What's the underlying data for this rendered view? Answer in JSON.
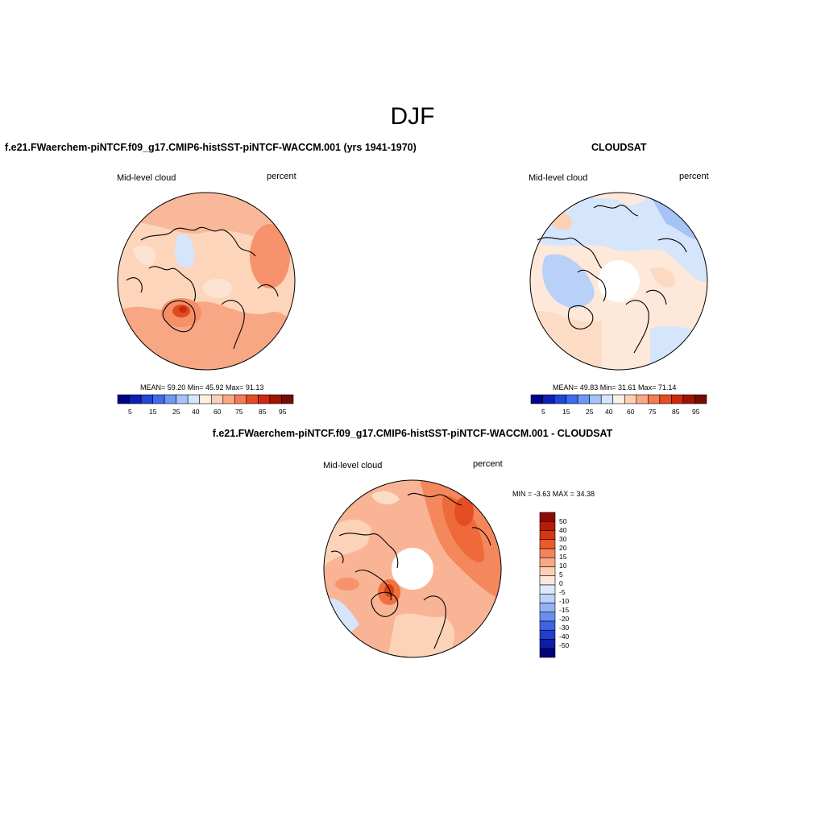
{
  "figure": {
    "title": "DJF"
  },
  "panels": {
    "model": {
      "case_title": "f.e21.FWaerchem-piNTCF.f09_g17.CMIP6-histSST-piNTCF-WACCM.001 (yrs 1941-1970)",
      "variable": "Mid-level cloud",
      "units": "percent",
      "stats": "MEAN=  59.20  Min=  45.92  Max=  91.13"
    },
    "obs": {
      "case_title": "CLOUDSAT",
      "variable": "Mid-level cloud",
      "units": "percent",
      "stats": "MEAN=  49.83  Min=  31.61  Max=  71.14"
    },
    "diff": {
      "case_title": "f.e21.FWaerchem-piNTCF.f09_g17.CMIP6-histSST-piNTCF-WACCM.001 - CLOUDSAT",
      "variable": "Mid-level cloud",
      "units": "percent",
      "stats": "MIN =  -3.63 MAX =  34.38"
    }
  },
  "colorbars": {
    "horizontal": {
      "colors": [
        "#00008c",
        "#0d1fb4",
        "#1f45d9",
        "#3d6df0",
        "#6e98f5",
        "#a5c3f7",
        "#d5e5fb",
        "#fff0e4",
        "#fcd0b4",
        "#f9a785",
        "#f47b52",
        "#ea4a20",
        "#cc2a0a",
        "#a01404",
        "#780a04"
      ],
      "tick_labels": [
        "5",
        "15",
        "25",
        "40",
        "60",
        "75",
        "85",
        "95"
      ]
    },
    "vertical": {
      "colors_top_to_bottom": [
        "#8c0b04",
        "#b81a0a",
        "#d83510",
        "#ee5a2c",
        "#f5845a",
        "#f8a985",
        "#fbcfb3",
        "#fde8da",
        "#ddeafc",
        "#bcd2f8",
        "#92b2f4",
        "#6a8ef0",
        "#3e64e5",
        "#1f3fd0",
        "#0d1ea8",
        "#01047e"
      ],
      "tick_labels": [
        "50",
        "40",
        "30",
        "20",
        "15",
        "10",
        "5",
        "0",
        "-5",
        "-10",
        "-15",
        "-20",
        "-30",
        "-40",
        "-50"
      ]
    }
  }
}
